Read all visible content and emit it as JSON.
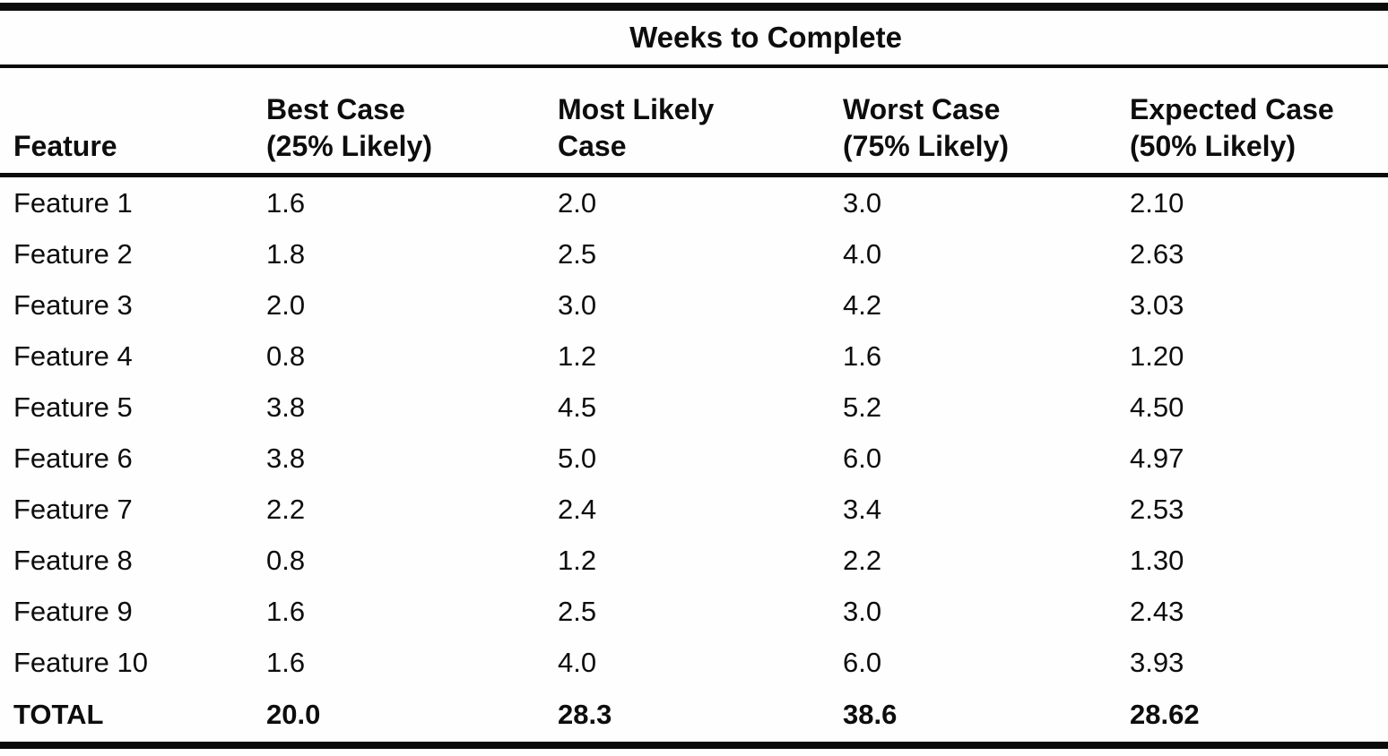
{
  "table": {
    "title": "Weeks to Complete",
    "columns": [
      {
        "key": "feature",
        "line1": "",
        "line2": "Feature"
      },
      {
        "key": "best",
        "line1": "Best Case",
        "line2": "(25% Likely)"
      },
      {
        "key": "most_likely",
        "line1": "Most Likely",
        "line2": "Case"
      },
      {
        "key": "worst",
        "line1": "Worst Case",
        "line2": "(75% Likely)"
      },
      {
        "key": "expected",
        "line1": "Expected Case",
        "line2": "(50% Likely)"
      }
    ],
    "rows": [
      {
        "feature": "Feature 1",
        "best": "1.6",
        "most_likely": "2.0",
        "worst": "3.0",
        "expected": "2.10"
      },
      {
        "feature": "Feature 2",
        "best": "1.8",
        "most_likely": "2.5",
        "worst": "4.0",
        "expected": "2.63"
      },
      {
        "feature": "Feature 3",
        "best": "2.0",
        "most_likely": "3.0",
        "worst": "4.2",
        "expected": "3.03"
      },
      {
        "feature": "Feature 4",
        "best": "0.8",
        "most_likely": "1.2",
        "worst": "1.6",
        "expected": "1.20"
      },
      {
        "feature": "Feature 5",
        "best": "3.8",
        "most_likely": "4.5",
        "worst": "5.2",
        "expected": "4.50"
      },
      {
        "feature": "Feature 6",
        "best": "3.8",
        "most_likely": "5.0",
        "worst": "6.0",
        "expected": "4.97"
      },
      {
        "feature": "Feature 7",
        "best": "2.2",
        "most_likely": "2.4",
        "worst": "3.4",
        "expected": "2.53"
      },
      {
        "feature": "Feature 8",
        "best": "0.8",
        "most_likely": "1.2",
        "worst": "2.2",
        "expected": "1.30"
      },
      {
        "feature": "Feature 9",
        "best": "1.6",
        "most_likely": "2.5",
        "worst": "3.0",
        "expected": "2.43"
      },
      {
        "feature": "Feature 10",
        "best": "1.6",
        "most_likely": "4.0",
        "worst": "6.0",
        "expected": "3.93"
      }
    ],
    "total": {
      "feature": "TOTAL",
      "best": "20.0",
      "most_likely": "28.3",
      "worst": "38.6",
      "expected": "28.62"
    }
  },
  "chart_data": {
    "type": "table",
    "title": "Weeks to Complete",
    "columns": [
      "Feature",
      "Best Case (25% Likely)",
      "Most Likely Case",
      "Worst Case (75% Likely)",
      "Expected Case (50% Likely)"
    ],
    "rows": [
      [
        "Feature 1",
        1.6,
        2.0,
        3.0,
        2.1
      ],
      [
        "Feature 2",
        1.8,
        2.5,
        4.0,
        2.63
      ],
      [
        "Feature 3",
        2.0,
        3.0,
        4.2,
        3.03
      ],
      [
        "Feature 4",
        0.8,
        1.2,
        1.6,
        1.2
      ],
      [
        "Feature 5",
        3.8,
        4.5,
        5.2,
        4.5
      ],
      [
        "Feature 6",
        3.8,
        5.0,
        6.0,
        4.97
      ],
      [
        "Feature 7",
        2.2,
        2.4,
        3.4,
        2.53
      ],
      [
        "Feature 8",
        0.8,
        1.2,
        2.2,
        1.3
      ],
      [
        "Feature 9",
        1.6,
        2.5,
        3.0,
        2.43
      ],
      [
        "Feature 10",
        1.6,
        4.0,
        6.0,
        3.93
      ]
    ],
    "total_row": [
      "TOTAL",
      20.0,
      28.3,
      38.6,
      28.62
    ]
  }
}
